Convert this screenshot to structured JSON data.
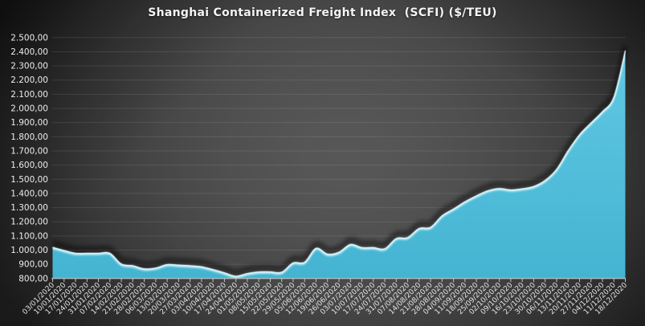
{
  "title": "Shanghai Containerized Freight Index  (SCFI) ($/TEU)",
  "chart_data": {
    "type": "area",
    "title": "Shanghai Containerized Freight Index  (SCFI) ($/TEU)",
    "xlabel": "",
    "ylabel": "",
    "ylim": [
      800,
      2500
    ],
    "ytick_step": 100,
    "grid": true,
    "legend": false,
    "ytick_labels_top_to_bottom": [
      "2.500,00",
      "2.400,00",
      "2.300,00",
      "2.200,00",
      "2.100,00",
      "2.000,00",
      "1.900,00",
      "1.800,00",
      "1.700,00",
      "1.600,00",
      "1.500,00",
      "1.400,00",
      "1.300,00",
      "1.200,00",
      "1.100,00",
      "1.000,00",
      "900,00",
      "800,00"
    ],
    "x": [
      "03/01/2020",
      "10/01/2020",
      "17/01/2020",
      "24/01/2020",
      "31/01/2020",
      "07/02/2020",
      "14/02/2020",
      "21/02/2020",
      "28/02/2020",
      "06/03/2020",
      "13/03/2020",
      "20/03/2020",
      "27/03/2020",
      "03/04/2020",
      "10/04/2020",
      "17/04/2020",
      "24/04/2020",
      "01/05/2020",
      "08/05/2020",
      "15/05/2020",
      "22/05/2020",
      "29/05/2020",
      "05/06/2020",
      "12/06/2020",
      "19/06/2020",
      "26/06/2020",
      "03/07/2020",
      "10/07/2020",
      "17/07/2020",
      "24/07/2020",
      "31/07/2020",
      "07/08/2020",
      "14/08/2020",
      "21/08/2020",
      "28/08/2020",
      "04/09/2020",
      "11/09/2020",
      "18/09/2020",
      "25/09/2020",
      "02/10/2020",
      "09/10/2020",
      "16/10/2020",
      "23/10/2020",
      "30/10/2020",
      "06/11/2020",
      "13/11/2020",
      "20/11/2020",
      "27/11/2020",
      "04/12/2020",
      "11/12/2020",
      "18/12/2020"
    ],
    "series": [
      {
        "name": "SCFI",
        "values": [
          1022.72,
          1000.7,
          981.19,
          981.19,
          981.19,
          981.19,
          905.0,
          893.0,
          871.0,
          877.0,
          901.0,
          897.0,
          893.0,
          886.0,
          866.0,
          843.0,
          819.0,
          838.0,
          849.0,
          850.0,
          847.0,
          913.0,
          918.0,
          1016.0,
          975.0,
          988.0,
          1043.0,
          1021.0,
          1021.0,
          1013.0,
          1085.0,
          1092.0,
          1156.0,
          1164.0,
          1245.0,
          1293.0,
          1344.0,
          1386.0,
          1422.0,
          1438.0,
          1428.0,
          1436.0,
          1452.0,
          1495.0,
          1573.0,
          1704.0,
          1817.0,
          1900.0,
          1980.0,
          2083.0,
          2411.82
        ]
      }
    ],
    "colors": {
      "area_fill_top": "#61c8e3",
      "area_fill_bottom": "#44b4d2",
      "area_highlight": "#e8fbff",
      "background_center": "#565656",
      "background_corner": "#101010",
      "gridline": "rgba(255,255,255,0.10)",
      "axis_line": "#c3c3c3",
      "text": "#ececec"
    }
  }
}
